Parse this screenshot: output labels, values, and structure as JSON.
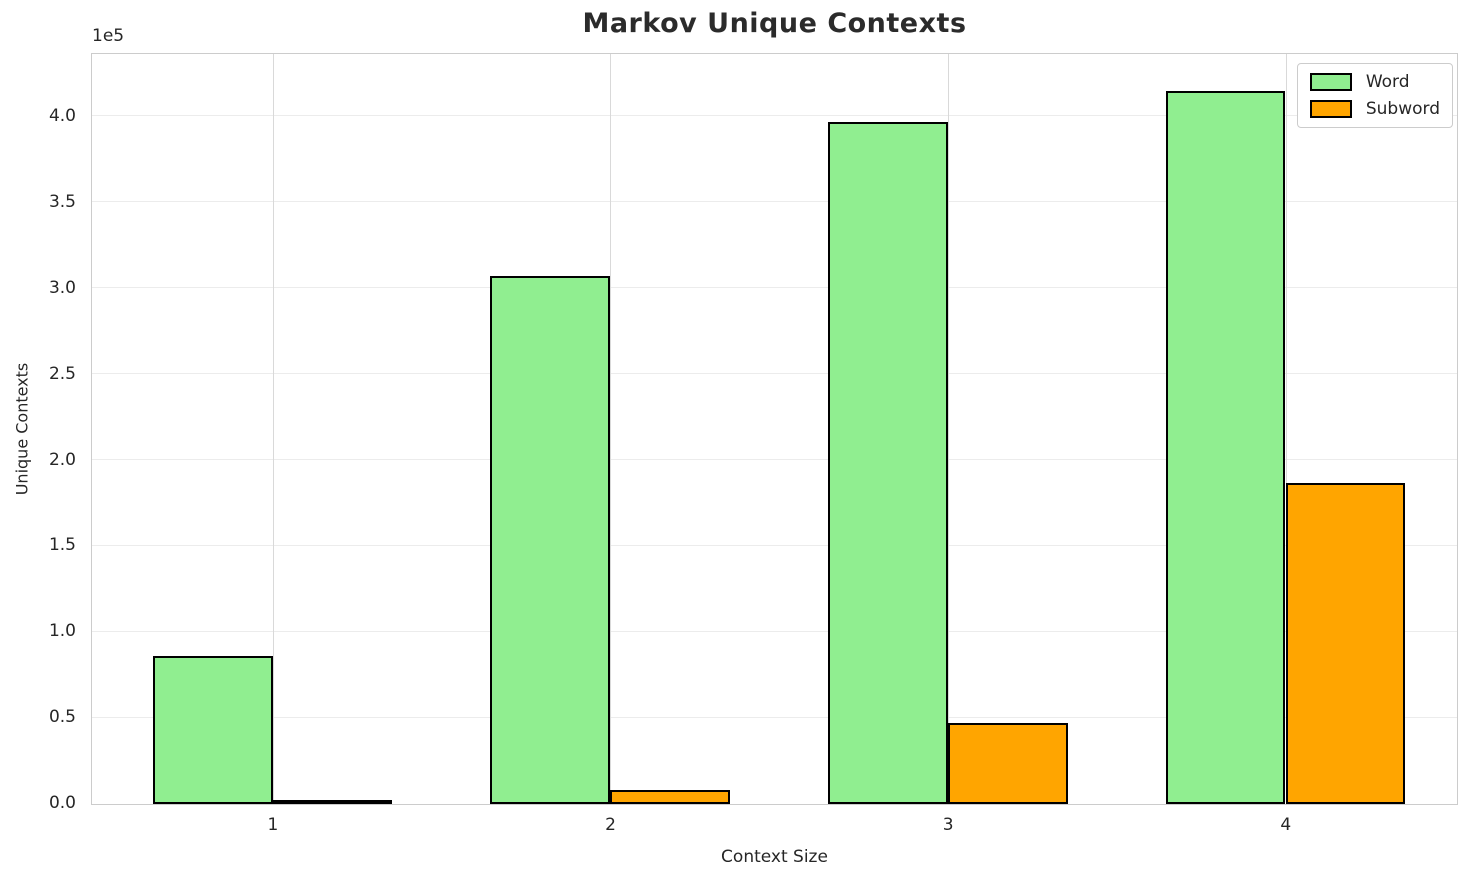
{
  "chart_data": {
    "type": "bar",
    "title": "Markov Unique Contexts",
    "xlabel": "Context Size",
    "ylabel": "Unique Contexts",
    "y_offset_label": "1e5",
    "categories": [
      "1",
      "2",
      "3",
      "4"
    ],
    "series": [
      {
        "name": "Word",
        "color": "#90EE90",
        "values": [
          86000,
          307000,
          397000,
          415000
        ]
      },
      {
        "name": "Subword",
        "color": "#FFA500",
        "values": [
          1000,
          8000,
          47000,
          187000
        ]
      }
    ],
    "bar_edge_color": "#000000",
    "bar_width_units": 0.355,
    "xlim": [
      0.465,
      4.505
    ],
    "ylim": [
      0,
      435750
    ],
    "yticks": [
      {
        "value": 0,
        "label": "0.0"
      },
      {
        "value": 50000,
        "label": "0.5"
      },
      {
        "value": 100000,
        "label": "1.0"
      },
      {
        "value": 150000,
        "label": "1.5"
      },
      {
        "value": 200000,
        "label": "2.0"
      },
      {
        "value": 250000,
        "label": "2.5"
      },
      {
        "value": 300000,
        "label": "3.0"
      },
      {
        "value": 350000,
        "label": "3.5"
      },
      {
        "value": 400000,
        "label": "4.0"
      }
    ],
    "grid": true,
    "legend": {
      "position": "upper right",
      "entries": [
        "Word",
        "Subword"
      ]
    }
  }
}
